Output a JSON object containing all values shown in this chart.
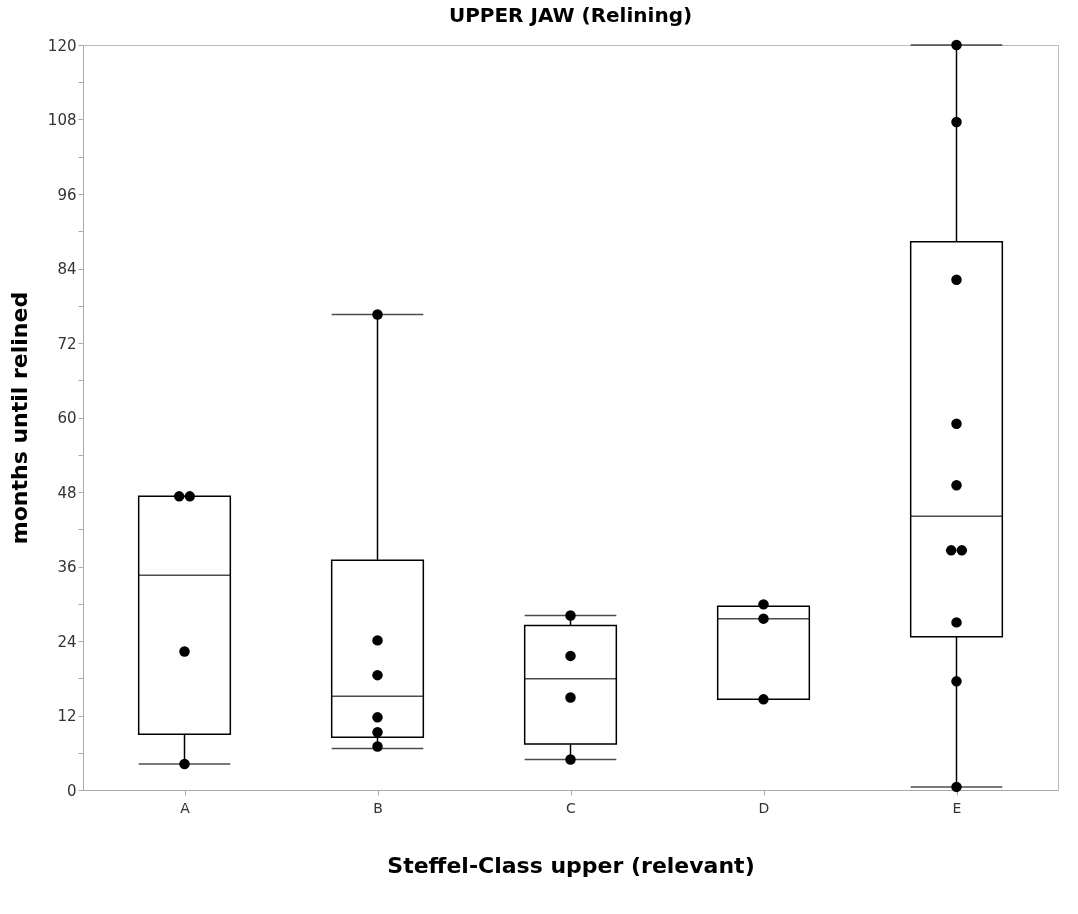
{
  "chart_data": {
    "type": "box",
    "title": "UPPER JAW (Relining)",
    "xlabel": "Steffel-Class  upper (relevant)",
    "ylabel": "months until relined",
    "categories": [
      "A",
      "B",
      "C",
      "D",
      "E"
    ],
    "ylim": [
      0,
      120
    ],
    "yticks": [
      0,
      {
        "value": 6,
        "label": null
      },
      12,
      {
        "value": 18,
        "label": null
      },
      24,
      {
        "value": 30,
        "label": null
      },
      36,
      {
        "value": 42,
        "label": null
      },
      48,
      {
        "value": 54,
        "label": null
      },
      60,
      {
        "value": 66,
        "label": null
      },
      72,
      {
        "value": 78,
        "label": null
      },
      84,
      {
        "value": 90,
        "label": null
      },
      96,
      {
        "value": 102,
        "label": null
      },
      108,
      {
        "value": 114,
        "label": null
      },
      120
    ],
    "grid": false,
    "series": [
      {
        "color": "#000000",
        "boxes": [
          {
            "low": 4.2,
            "q1": 9.0,
            "median": 34.6,
            "q3": 47.3,
            "high": 47.3
          },
          {
            "low": 6.7,
            "q1": 8.5,
            "median": 15.1,
            "q3": 37.0,
            "high": 76.6
          },
          {
            "low": 4.9,
            "q1": 7.4,
            "median": 17.9,
            "q3": 26.5,
            "high": 28.1
          },
          {
            "low": 14.6,
            "q1": 14.6,
            "median": 27.6,
            "q3": 29.6,
            "high": 29.6
          },
          {
            "low": 0.5,
            "q1": 24.7,
            "median": 44.1,
            "q3": 88.3,
            "high": 120
          }
        ]
      },
      {
        "type": "scatter",
        "color": "#000000",
        "marker": "circle",
        "x": [
          "A",
          "A",
          "A",
          "A",
          "B",
          "B",
          "B",
          "B",
          "B",
          "B",
          "C",
          "C",
          "C",
          "C",
          "D",
          "D",
          "D",
          "E",
          "E",
          "E",
          "E",
          "E",
          "E",
          "E",
          "E",
          "E",
          "E"
        ],
        "values": [
          47.3,
          47.3,
          22.3,
          4.2,
          76.6,
          24.1,
          18.5,
          11.7,
          9.3,
          7.0,
          28.1,
          21.6,
          14.9,
          4.9,
          29.9,
          27.6,
          14.6,
          120,
          107.6,
          82.2,
          59.0,
          49.1,
          38.6,
          38.6,
          27.0,
          17.5,
          0.5
        ]
      }
    ]
  }
}
